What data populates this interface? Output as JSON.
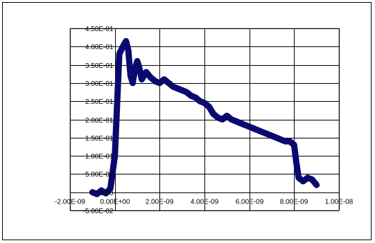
{
  "chart_data": {
    "type": "line",
    "title": "",
    "xlabel": "",
    "ylabel": "",
    "xlim": [
      -2e-09,
      1e-08
    ],
    "ylim": [
      -0.05,
      0.45
    ],
    "grid": true,
    "legend": "none",
    "x_ticks": [
      -2e-09,
      0,
      2e-09,
      4e-09,
      6e-09,
      8e-09,
      1e-08
    ],
    "x_tick_labels": [
      "-2.00E-09",
      "0.00E+00",
      "2.00E-09",
      "4.00E-09",
      "6.00E-09",
      "8.00E-09",
      "1.00E-08"
    ],
    "y_ticks": [
      -0.05,
      0.0,
      0.05,
      0.1,
      0.15,
      0.2,
      0.25,
      0.3,
      0.35,
      0.4,
      0.45
    ],
    "y_tick_labels": [
      "-5.00E-02",
      "0.00",
      "5.00E-02",
      "1.00E-01",
      "1.50E-01",
      "2.00E-01",
      "2.50E-01",
      "3.00E-01",
      "3.50E-01",
      "4.00E-01",
      "4.50E-01"
    ],
    "series": [
      {
        "color": "#0a0a6e",
        "x": [
          -1e-09,
          -8e-10,
          -6e-10,
          -4e-10,
          -2e-10,
          0,
          2e-10,
          4e-10,
          5e-10,
          6e-10,
          7e-10,
          8e-10,
          9e-10,
          1e-09,
          1.1e-09,
          1.2e-09,
          1.4e-09,
          1.6e-09,
          1.8e-09,
          2e-09,
          2.2e-09,
          2.4e-09,
          2.6e-09,
          2.8e-09,
          3e-09,
          3.2e-09,
          3.4e-09,
          3.6e-09,
          3.8e-09,
          4e-09,
          4.2e-09,
          4.4e-09,
          4.6e-09,
          4.8e-09,
          5e-09,
          5.2e-09,
          5.4e-09,
          5.6e-09,
          5.8e-09,
          6e-09,
          6.2e-09,
          6.4e-09,
          6.6e-09,
          6.8e-09,
          7e-09,
          7.2e-09,
          7.4e-09,
          7.6e-09,
          7.8e-09,
          8e-09,
          8.1e-09,
          8.2e-09,
          8.4e-09,
          8.6e-09,
          8.8e-09,
          9e-09
        ],
        "y": [
          0.0,
          -0.005,
          0.005,
          -0.003,
          0.01,
          0.1,
          0.38,
          0.405,
          0.415,
          0.39,
          0.32,
          0.3,
          0.34,
          0.36,
          0.34,
          0.31,
          0.33,
          0.315,
          0.305,
          0.3,
          0.31,
          0.3,
          0.29,
          0.285,
          0.28,
          0.275,
          0.265,
          0.26,
          0.25,
          0.245,
          0.235,
          0.215,
          0.205,
          0.2,
          0.21,
          0.2,
          0.195,
          0.19,
          0.185,
          0.18,
          0.175,
          0.17,
          0.165,
          0.16,
          0.155,
          0.15,
          0.145,
          0.14,
          0.14,
          0.13,
          0.08,
          0.04,
          0.03,
          0.04,
          0.035,
          0.02
        ]
      }
    ]
  }
}
